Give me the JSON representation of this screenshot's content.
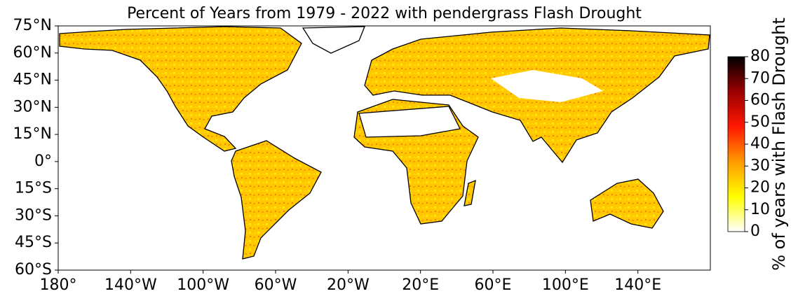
{
  "chart_data": {
    "type": "map",
    "title": "Percent of Years from 1979 - 2022 with pendergrass Flash Drought",
    "xlim": [
      -180,
      180
    ],
    "xticks": [
      {
        "value": -180,
        "label": "180°"
      },
      {
        "value": -140,
        "label": "140°W"
      },
      {
        "value": -100,
        "label": "100°W"
      },
      {
        "value": -60,
        "label": "60°W"
      },
      {
        "value": -20,
        "label": "20°W"
      },
      {
        "value": 20,
        "label": "20°E"
      },
      {
        "value": 60,
        "label": "60°E"
      },
      {
        "value": 100,
        "label": "100°E"
      },
      {
        "value": 140,
        "label": "140°E"
      }
    ],
    "ylim": [
      -60,
      75
    ],
    "yticks": [
      {
        "value": 75,
        "label": "75°N"
      },
      {
        "value": 60,
        "label": "60°N"
      },
      {
        "value": 45,
        "label": "45°N"
      },
      {
        "value": 30,
        "label": "30°N"
      },
      {
        "value": 15,
        "label": "15°N"
      },
      {
        "value": 0,
        "label": "0°"
      },
      {
        "value": -15,
        "label": "15°S"
      },
      {
        "value": -30,
        "label": "30°S"
      },
      {
        "value": -45,
        "label": "45°S"
      },
      {
        "value": -60,
        "label": "60°S"
      }
    ],
    "colorbar": {
      "label": "% of years with Flash Drought",
      "lim": [
        0,
        80
      ],
      "ticks": [
        0,
        10,
        20,
        30,
        40,
        50,
        60,
        70,
        80
      ],
      "colormap": [
        "#ffffff",
        "#ffff00",
        "#ff9a00",
        "#ff1800",
        "#9a0000",
        "#000000"
      ]
    }
  }
}
